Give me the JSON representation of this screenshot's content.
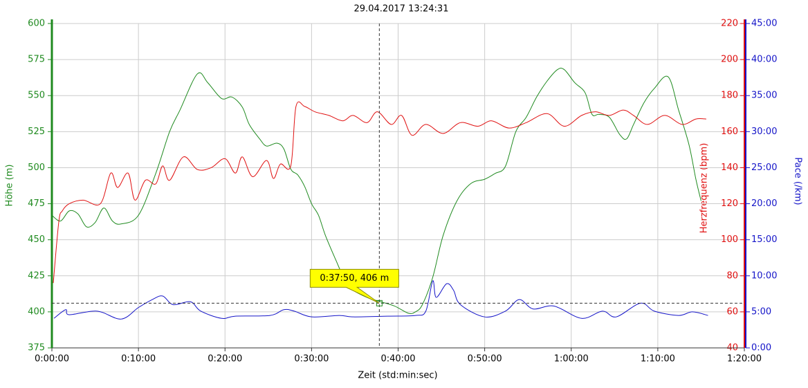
{
  "chart_data": {
    "type": "line",
    "title": "29.04.2017 13:24:31",
    "x_label": "Zeit (std:min:sec)",
    "y_label": "Höhe (m)",
    "y2_label": "Herzfrequenz (bpm)",
    "y3_label": "Pace (/km)",
    "xlim": [
      0,
      80
    ],
    "xticks": [
      {
        "value": 0,
        "label": "0:00:00"
      },
      {
        "value": 10,
        "label": "0:10:00"
      },
      {
        "value": 20,
        "label": "0:20:00"
      },
      {
        "value": 30,
        "label": "0:30:00"
      },
      {
        "value": 40,
        "label": "0:40:00"
      },
      {
        "value": 50,
        "label": "0:50:00"
      },
      {
        "value": 60,
        "label": "1:00:00"
      },
      {
        "value": 70,
        "label": "1:10:00"
      },
      {
        "value": 80,
        "label": "1:20:00"
      }
    ],
    "ylim": [
      375,
      600
    ],
    "yticks": [
      375,
      400,
      425,
      450,
      475,
      500,
      525,
      550,
      575,
      600
    ],
    "y2lim": [
      40,
      220
    ],
    "y2ticks": [
      40,
      60,
      80,
      100,
      120,
      140,
      160,
      180,
      200,
      220
    ],
    "y3lim": [
      0,
      45
    ],
    "y3ticks": [
      {
        "value": 0,
        "label": "0:00"
      },
      {
        "value": 5,
        "label": "5:00"
      },
      {
        "value": 10,
        "label": "10:00"
      },
      {
        "value": 15,
        "label": "15:00"
      },
      {
        "value": 20,
        "label": "20:00"
      },
      {
        "value": 25,
        "label": "25:00"
      },
      {
        "value": 30,
        "label": "30:00"
      },
      {
        "value": 35,
        "label": "35:00"
      },
      {
        "value": 40,
        "label": "40:00"
      },
      {
        "value": 45,
        "label": "45:00"
      }
    ],
    "grid": true,
    "series": [
      {
        "axis": "y",
        "color": "#1f8a1f",
        "x": [
          0,
          1,
          2,
          3,
          4,
          5,
          6,
          7,
          8,
          10,
          12,
          13.6,
          14.8,
          16.8,
          18,
          19.6,
          20.8,
          22,
          22.8,
          24,
          24.8,
          26,
          26.8,
          27.6,
          28.4,
          29.2,
          30,
          30.8,
          31.6,
          32.8,
          34,
          34.8,
          36.4,
          38,
          39.6,
          41.2,
          42,
          42.8,
          44,
          45.2,
          46.8,
          48.4,
          50,
          51.2,
          52.4,
          53.6,
          54.8,
          56,
          57.2,
          58.4,
          59.2,
          60.4,
          61.6,
          62.4,
          63.2,
          64.4,
          65.6,
          66.4,
          67.2,
          68.4,
          69.6,
          71.2,
          72.4,
          73.6,
          74.4,
          75
        ],
        "values": [
          467,
          463,
          470,
          468,
          459,
          462,
          472,
          463,
          461,
          467,
          496,
          525,
          540,
          565,
          559,
          548,
          549,
          542,
          530,
          520,
          515,
          517,
          513,
          499,
          495,
          487,
          475,
          467,
          453,
          436,
          420,
          415,
          410,
          407,
          404,
          399,
          400,
          405,
          424,
          453,
          477,
          489,
          492,
          496,
          501,
          525,
          535,
          549,
          560,
          568,
          568,
          559,
          552,
          537,
          537,
          535,
          523,
          520,
          530,
          545,
          555,
          563,
          540,
          516,
          492,
          477
        ]
      },
      {
        "axis": "y2",
        "color": "#e01010",
        "x": [
          0.16,
          0.8,
          1.2,
          2,
          3.6,
          5.6,
          6.8,
          7.6,
          8.8,
          9.6,
          10.8,
          12,
          12.8,
          13.6,
          15.2,
          16.8,
          18.4,
          20,
          21.2,
          22,
          23.2,
          24.8,
          25.6,
          26.4,
          27.6,
          28.2,
          29.2,
          30.4,
          32,
          33.6,
          34.8,
          36.4,
          37.6,
          39.2,
          40.4,
          41.6,
          43.2,
          45.2,
          47.2,
          49.2,
          50.8,
          52.8,
          54.8,
          57.2,
          59.2,
          61.2,
          62.8,
          64.4,
          66,
          67.2,
          68.8,
          70.8,
          72.8,
          74.4,
          75.6
        ],
        "values": [
          76,
          110,
          116,
          120,
          122,
          120,
          137,
          129,
          137,
          122,
          133,
          131,
          141,
          133,
          146,
          139,
          140,
          145,
          137,
          146,
          135,
          144,
          134,
          142,
          141,
          174,
          174,
          171,
          169,
          166,
          169,
          165,
          171,
          164,
          169,
          158,
          164,
          159,
          165,
          163,
          166,
          162,
          165,
          170,
          163,
          169,
          171,
          169,
          172,
          169,
          164,
          169,
          164,
          167,
          167
        ]
      },
      {
        "axis": "y3",
        "color": "#1414c8",
        "x": [
          0.24,
          1.6,
          2,
          5.2,
          8,
          10,
          11.6,
          12.8,
          14,
          16,
          17.2,
          19.6,
          21.2,
          25.2,
          26.8,
          28,
          30,
          33.2,
          34.8,
          38.8,
          42,
          43.2,
          44,
          44.4,
          45.6,
          46.4,
          47.2,
          50,
          52.4,
          54,
          55.6,
          58,
          61.2,
          63.6,
          65.2,
          68,
          69.6,
          72.4,
          74,
          75.8
        ],
        "values": [
          4.1,
          5.3,
          4.6,
          5.1,
          4.0,
          5.6,
          6.7,
          7.2,
          6.0,
          6.4,
          5.1,
          4.1,
          4.4,
          4.5,
          5.3,
          5.1,
          4.3,
          4.5,
          4.3,
          4.4,
          4.5,
          5.1,
          9.3,
          7.0,
          8.9,
          8.0,
          6.0,
          4.3,
          5.1,
          6.7,
          5.4,
          5.8,
          4.1,
          5.1,
          4.3,
          6.2,
          5.1,
          4.5,
          5.0,
          4.5
        ]
      }
    ],
    "annotation": {
      "text": "0:37:50, 406 m",
      "x": 37.83,
      "y": 406
    }
  }
}
